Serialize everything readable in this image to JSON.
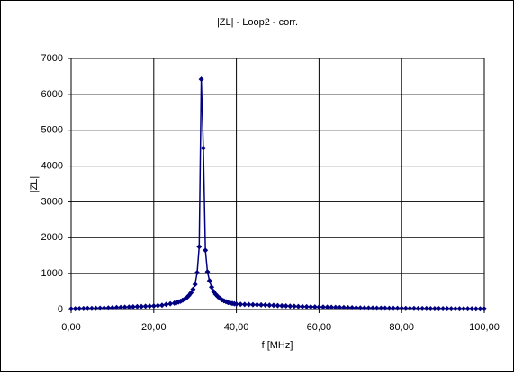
{
  "chart_data": {
    "type": "line",
    "title": "|ZL| - Loop2 - corr.",
    "x_label": "f [MHz]",
    "y_label": "|ZL|",
    "x": [
      0,
      1,
      2,
      3,
      4,
      5,
      6,
      7,
      8,
      9,
      10,
      11,
      12,
      13,
      14,
      15,
      16,
      17,
      18,
      19,
      20,
      21,
      22,
      23,
      24,
      25,
      25.5,
      26,
      26.5,
      27,
      27.5,
      28,
      28.5,
      29,
      29.5,
      30,
      30.5,
      31,
      31.5,
      32,
      32.5,
      33,
      33.5,
      34,
      34.5,
      35,
      35.5,
      36,
      36.5,
      37,
      37.5,
      38,
      38.5,
      39,
      39.5,
      40,
      41,
      42,
      43,
      44,
      45,
      46,
      47,
      48,
      49,
      50,
      51,
      52,
      53,
      54,
      55,
      56,
      57,
      58,
      59,
      60,
      61,
      62,
      63,
      64,
      65,
      66,
      67,
      68,
      69,
      70,
      71,
      72,
      73,
      74,
      75,
      76,
      77,
      78,
      79,
      80,
      81,
      82,
      83,
      84,
      85,
      86,
      87,
      88,
      89,
      90,
      91,
      92,
      93,
      94,
      95,
      96,
      97,
      98,
      99,
      100
    ],
    "series": [
      {
        "color": "#000080",
        "values": [
          20,
          22,
          25,
          28,
          30,
          32,
          35,
          38,
          40,
          45,
          50,
          55,
          60,
          65,
          70,
          75,
          80,
          85,
          90,
          95,
          100,
          110,
          120,
          140,
          160,
          180,
          190,
          210,
          230,
          260,
          290,
          330,
          390,
          460,
          560,
          700,
          1030,
          1750,
          6420,
          4500,
          1650,
          1050,
          800,
          620,
          500,
          420,
          360,
          310,
          270,
          240,
          215,
          195,
          180,
          170,
          160,
          150,
          145,
          140,
          138,
          135,
          132,
          130,
          125,
          120,
          115,
          110,
          105,
          100,
          95,
          90,
          85,
          80,
          78,
          75,
          72,
          70,
          68,
          65,
          62,
          60,
          58,
          55,
          52,
          50,
          48,
          45,
          44,
          42,
          40,
          39,
          38,
          37,
          36,
          35,
          34,
          33,
          32,
          31,
          30,
          29,
          28,
          27,
          26,
          25,
          25,
          24,
          24,
          23,
          23,
          22,
          22,
          21,
          21,
          20,
          20,
          20
        ]
      }
    ],
    "xlim": [
      0,
      100
    ],
    "ylim": [
      0,
      7000
    ],
    "xticks": [
      {
        "value": 0,
        "label": "0,00"
      },
      {
        "value": 20,
        "label": "20,00"
      },
      {
        "value": 40,
        "label": "40,00"
      },
      {
        "value": 60,
        "label": "60,00"
      },
      {
        "value": 80,
        "label": "80,00"
      },
      {
        "value": 100,
        "label": "100,00"
      }
    ],
    "yticks": [
      0,
      1000,
      2000,
      3000,
      4000,
      5000,
      6000,
      7000
    ],
    "grid": true
  }
}
